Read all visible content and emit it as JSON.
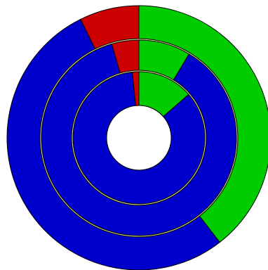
{
  "chart_data": {
    "type": "pie",
    "variant": "nested-donut",
    "title": "",
    "legend": "none",
    "rings": [
      {
        "name": "",
        "slices": [
          {
            "value": 39.5,
            "color": "#00cc00"
          },
          {
            "value": 53.2,
            "color": "#0000cc"
          },
          {
            "value": 7.3,
            "color": "#cc0000"
          }
        ]
      },
      {
        "name": "",
        "slices": [
          {
            "value": 8.6,
            "color": "#00cc00"
          },
          {
            "value": 86.9,
            "color": "#0000cc"
          },
          {
            "value": 4.5,
            "color": "#cc0000"
          }
        ]
      },
      {
        "name": "",
        "slices": [
          {
            "value": 13.6,
            "color": "#00cc00"
          },
          {
            "value": 84.8,
            "color": "#0000cc"
          },
          {
            "value": 1.6,
            "color": "#cc0000"
          }
        ]
      }
    ],
    "start": "12 o'clock",
    "direction": "clockwise"
  }
}
